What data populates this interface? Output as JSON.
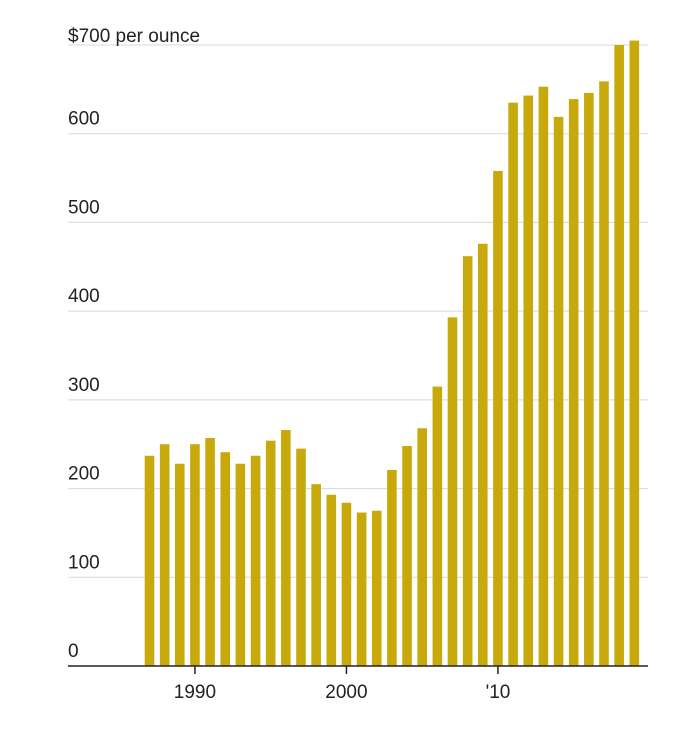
{
  "chart_data": {
    "type": "bar",
    "title": "",
    "xlabel": "",
    "ylabel": "",
    "unit_label": "$700 per ounce",
    "ylim": [
      0,
      700
    ],
    "yticks": [
      {
        "value": 0,
        "label": "0"
      },
      {
        "value": 100,
        "label": "100"
      },
      {
        "value": 200,
        "label": "200"
      },
      {
        "value": 300,
        "label": "300"
      },
      {
        "value": 400,
        "label": "400"
      },
      {
        "value": 500,
        "label": "500"
      },
      {
        "value": 600,
        "label": "600"
      }
    ],
    "xticks": [
      {
        "year": 1990,
        "label": "1990"
      },
      {
        "year": 2000,
        "label": "2000"
      },
      {
        "year": 2010,
        "label": "'10"
      }
    ],
    "grid": true,
    "bar_color": "#c8a90c",
    "grid_color": "#d8d8d8",
    "axis_color": "#222222",
    "categories": [
      1987,
      1988,
      1989,
      1990,
      1991,
      1992,
      1993,
      1994,
      1995,
      1996,
      1997,
      1998,
      1999,
      2000,
      2001,
      2002,
      2003,
      2004,
      2005,
      2006,
      2007,
      2008,
      2009,
      2010,
      2011,
      2012,
      2013,
      2014,
      2015,
      2016,
      2017,
      2018,
      2019
    ],
    "values": [
      237,
      250,
      228,
      250,
      257,
      241,
      228,
      237,
      254,
      266,
      245,
      205,
      193,
      184,
      173,
      175,
      221,
      248,
      268,
      315,
      393,
      462,
      476,
      558,
      635,
      643,
      653,
      619,
      639,
      646,
      659,
      700,
      705
    ]
  }
}
